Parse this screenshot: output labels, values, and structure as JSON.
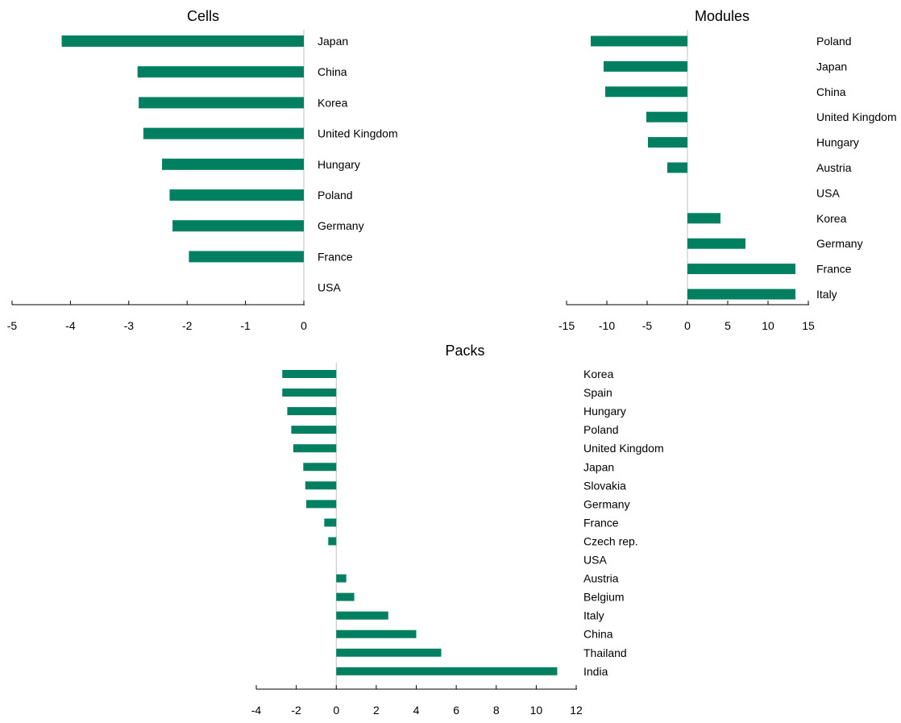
{
  "colors": {
    "bar": "#008060",
    "axis": "#000000",
    "zero_line": "#c0c0c0"
  },
  "chart_data": [
    {
      "type": "bar",
      "orientation": "horizontal",
      "title": "Cells",
      "categories": [
        "Japan",
        "China",
        "Korea",
        "United Kingdom",
        "Hungary",
        "Poland",
        "Germany",
        "France",
        "USA"
      ],
      "values": [
        -4.15,
        -2.85,
        -2.83,
        -2.75,
        -2.43,
        -2.3,
        -2.25,
        -1.97,
        0
      ],
      "xlim": [
        -5,
        0
      ],
      "xticks": [
        "-5",
        "-4",
        "-3",
        "-2",
        "-1",
        "0"
      ],
      "grid": false,
      "legend": false
    },
    {
      "type": "bar",
      "orientation": "horizontal",
      "title": "Modules",
      "categories": [
        "Poland",
        "Japan",
        "China",
        "United Kingdom",
        "Hungary",
        "Austria",
        "USA",
        "Korea",
        "Germany",
        "France",
        "Italy"
      ],
      "values": [
        -12.0,
        -10.4,
        -10.2,
        -5.1,
        -4.9,
        -2.5,
        0,
        4.1,
        7.2,
        13.4,
        13.4
      ],
      "xlim": [
        -15,
        15
      ],
      "xticks": [
        "-15",
        "-10",
        "-5",
        "0",
        "5",
        "10",
        "15"
      ],
      "grid": false,
      "legend": false
    },
    {
      "type": "bar",
      "orientation": "horizontal",
      "title": "Packs",
      "categories": [
        "Korea",
        "Spain",
        "Hungary",
        "Poland",
        "United Kingdom",
        "Japan",
        "Slovakia",
        "Germany",
        "France",
        "Czech rep.",
        "USA",
        "Austria",
        "Belgium",
        "Italy",
        "China",
        "Thailand",
        "India"
      ],
      "values": [
        -2.7,
        -2.7,
        -2.45,
        -2.25,
        -2.15,
        -1.65,
        -1.55,
        -1.5,
        -0.6,
        -0.4,
        0,
        0.5,
        0.9,
        2.6,
        4.0,
        5.25,
        11.05
      ],
      "xlim": [
        -4,
        12
      ],
      "xticks": [
        "-4",
        "-2",
        "0",
        "2",
        "4",
        "6",
        "8",
        "10",
        "12"
      ],
      "grid": false,
      "legend": false
    }
  ]
}
